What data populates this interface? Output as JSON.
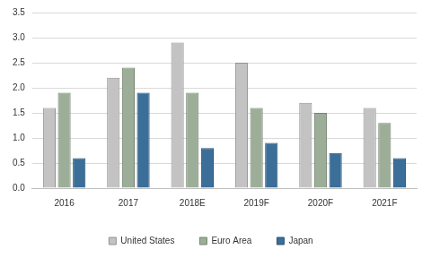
{
  "chart_data": {
    "type": "bar",
    "categories": [
      "2016",
      "2017",
      "2018E",
      "2019F",
      "2020F",
      "2021F"
    ],
    "series": [
      {
        "name": "United States",
        "color": "#c3c3c3",
        "values": [
          1.6,
          2.2,
          2.9,
          2.5,
          1.7,
          1.6
        ]
      },
      {
        "name": "Euro Area",
        "color": "#9cae98",
        "values": [
          1.9,
          2.4,
          1.9,
          1.6,
          1.5,
          1.3
        ]
      },
      {
        "name": "Japan",
        "color": "#3b6e99",
        "values": [
          0.6,
          1.9,
          0.8,
          0.9,
          0.7,
          0.6
        ]
      }
    ],
    "ylim": [
      0,
      3.5
    ],
    "yticks": [
      {
        "value": 0,
        "label": "0.0"
      },
      0.5,
      {
        "value": 1,
        "label": "1.0"
      },
      1.5,
      {
        "value": 2,
        "label": "2.0"
      },
      2.5,
      {
        "value": 3,
        "label": "3.0"
      },
      3.5
    ],
    "grid": true,
    "legend": "bottom"
  }
}
